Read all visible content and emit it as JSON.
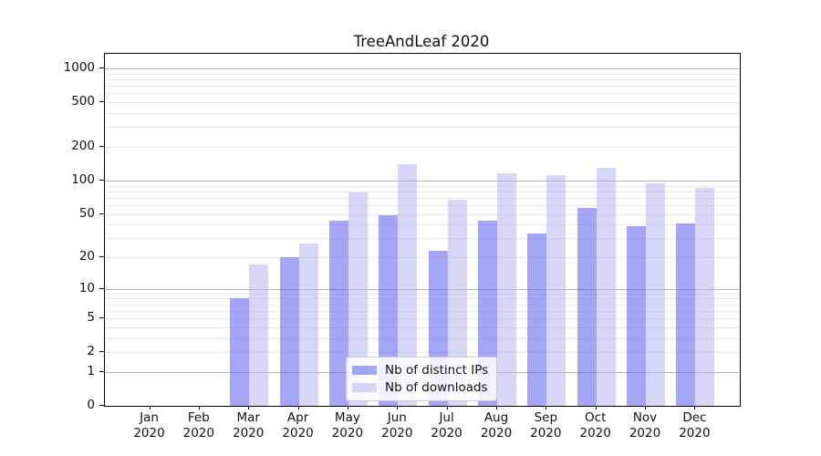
{
  "title": "TreeAndLeaf 2020",
  "chart_data": {
    "type": "bar",
    "title": "TreeAndLeaf 2020",
    "categories": [
      "Jan 2020",
      "Feb 2020",
      "Mar 2020",
      "Apr 2020",
      "May 2020",
      "Jun 2020",
      "Jul 2020",
      "Aug 2020",
      "Sep 2020",
      "Oct 2020",
      "Nov 2020",
      "Dec 2020"
    ],
    "month_labels": [
      "Jan",
      "Feb",
      "Mar",
      "Apr",
      "May",
      "Jun",
      "Jul",
      "Aug",
      "Sep",
      "Oct",
      "Nov",
      "Dec"
    ],
    "year_label": "2020",
    "series": [
      {
        "name": "Nb of distinct IPs",
        "color": "rgba(85,85,240,0.52)",
        "values": [
          0,
          0,
          8,
          20,
          43,
          49,
          23,
          43,
          33,
          57,
          39,
          41
        ]
      },
      {
        "name": "Nb of downloads",
        "color": "rgba(175,175,240,0.5)",
        "values": [
          0,
          0,
          17,
          27,
          78,
          140,
          67,
          117,
          112,
          129,
          95,
          86
        ]
      }
    ],
    "xlabel": "",
    "ylabel": "",
    "yscale": "log10(value+1)",
    "ylim": [
      0,
      1350
    ],
    "yticks": [
      0,
      1,
      2,
      5,
      10,
      20,
      50,
      100,
      200,
      500,
      1000
    ],
    "grid": {
      "major_lines": [
        1,
        10,
        100,
        1000
      ],
      "minor_lines": [
        2,
        3,
        4,
        5,
        6,
        7,
        8,
        9,
        20,
        30,
        40,
        50,
        60,
        70,
        80,
        90,
        200,
        300,
        400,
        500,
        600,
        700,
        800,
        900
      ],
      "major_color": "#b5b5b5",
      "minor_color": "#e9e9e9"
    },
    "legend_position": "inside lower-center"
  }
}
